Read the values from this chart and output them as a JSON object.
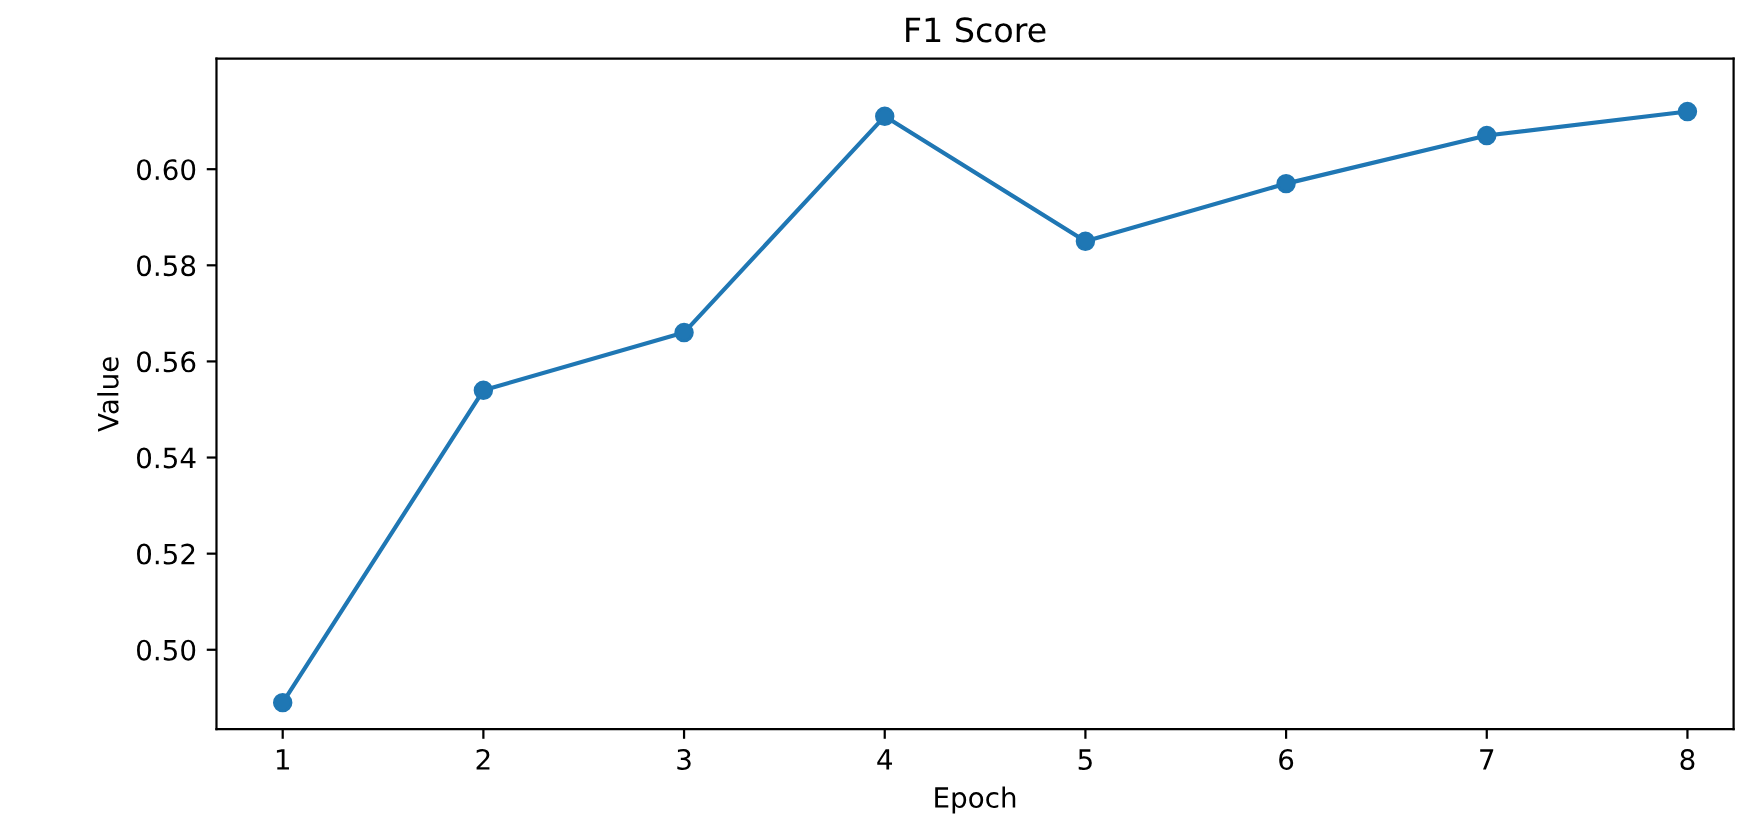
{
  "chart_data": {
    "type": "line",
    "title": "F1 Score",
    "xlabel": "Epoch",
    "ylabel": "Value",
    "x": [
      1,
      2,
      3,
      4,
      5,
      6,
      7,
      8
    ],
    "series": [
      {
        "color": "#1f77b4",
        "values": [
          0.489,
          0.554,
          0.566,
          0.611,
          0.585,
          0.597,
          0.607,
          0.612
        ]
      }
    ],
    "xlim": [
      0.67,
      8.23
    ],
    "ylim": [
      0.4835,
      0.623
    ],
    "xticks": [
      1,
      2,
      3,
      4,
      5,
      6,
      7,
      8
    ],
    "yticks": [
      {
        "value": 0.5,
        "label": "0.50"
      },
      0.52,
      0.54,
      0.56,
      0.58,
      {
        "value": 0.6,
        "label": "0.60"
      }
    ],
    "marker": "circle",
    "line_style": "solid",
    "grid": false,
    "legend": false
  }
}
